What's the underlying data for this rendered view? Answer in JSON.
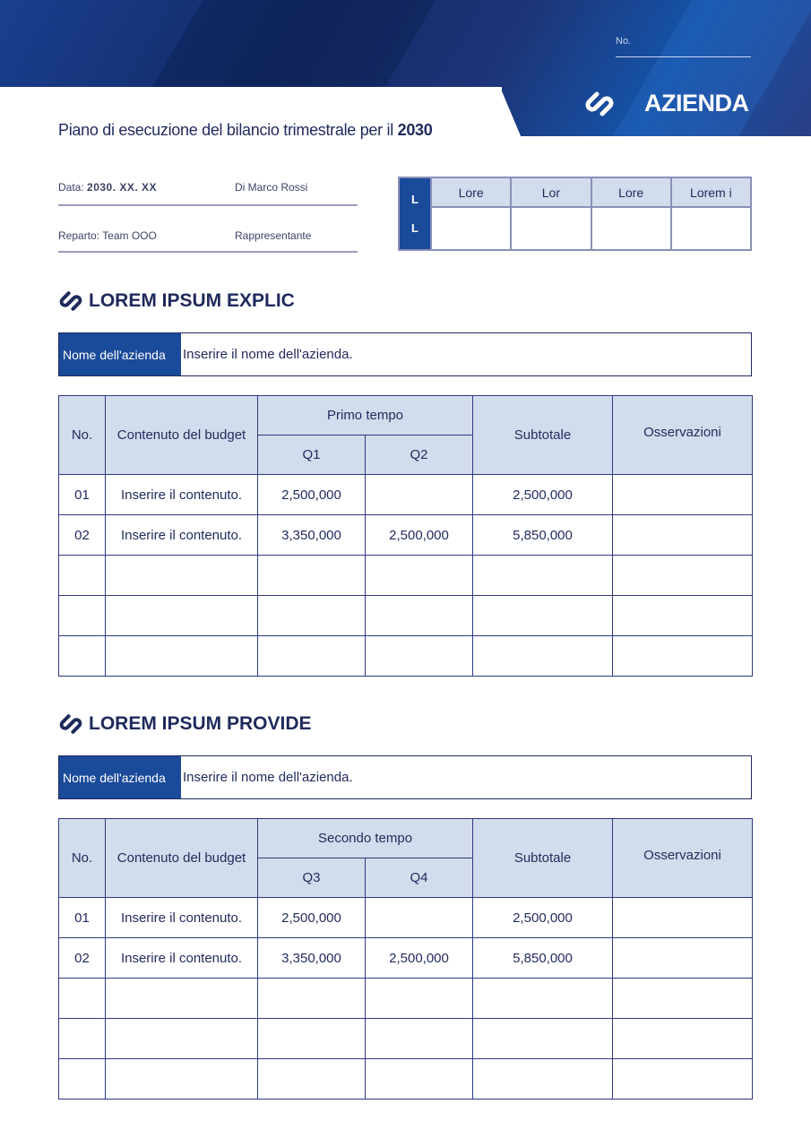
{
  "header": {
    "no_label": "No.",
    "brand": "AZIENDA",
    "title_prefix": "Piano di esecuzione del bilancio trimestrale per il ",
    "title_year": "2030"
  },
  "info": {
    "date_label": "Data: ",
    "date_value": "2030. XX. XX",
    "author": "Di Marco Rossi",
    "department": "Reparto: Team OOO",
    "representative": "Rappresentante"
  },
  "approval": {
    "side": [
      "L",
      "L"
    ],
    "columns": [
      "Lore",
      "Lor",
      "Lore",
      "Lorem i"
    ]
  },
  "colors": {
    "navy": "#1f2a5c",
    "accent": "#1a4a9a",
    "header_bg": "#d3dcec"
  },
  "sections": [
    {
      "title": "LOREM IPSUM EXPLIC",
      "name_label": "Nome dell'azienda",
      "name_value": "Inserire il nome dell'azienda.",
      "table": {
        "headers": {
          "no": "No.",
          "content": "Contenuto del budget",
          "period": "Primo tempo",
          "q_a": "Q1",
          "q_b": "Q2",
          "subtotal": "Subtotale",
          "notes": "Osservazioni"
        },
        "rows": [
          [
            "01",
            "Inserire il contenuto.",
            "2,500,000",
            "",
            "2,500,000",
            ""
          ],
          [
            "02",
            "Inserire il contenuto.",
            "3,350,000",
            "2,500,000",
            "5,850,000",
            ""
          ],
          [
            "",
            "",
            "",
            "",
            "",
            ""
          ],
          [
            "",
            "",
            "",
            "",
            "",
            ""
          ],
          [
            "",
            "",
            "",
            "",
            "",
            ""
          ]
        ]
      }
    },
    {
      "title": "LOREM IPSUM PROVIDE",
      "name_label": "Nome dell'azienda",
      "name_value": "Inserire il nome dell'azienda.",
      "table": {
        "headers": {
          "no": "No.",
          "content": "Contenuto del budget",
          "period": "Secondo tempo",
          "q_a": "Q3",
          "q_b": "Q4",
          "subtotal": "Subtotale",
          "notes": "Osservazioni"
        },
        "rows": [
          [
            "01",
            "Inserire il contenuto.",
            "2,500,000",
            "",
            "2,500,000",
            ""
          ],
          [
            "02",
            "Inserire il contenuto.",
            "3,350,000",
            "2,500,000",
            "5,850,000",
            ""
          ],
          [
            "",
            "",
            "",
            "",
            "",
            ""
          ],
          [
            "",
            "",
            "",
            "",
            "",
            ""
          ],
          [
            "",
            "",
            "",
            "",
            "",
            ""
          ]
        ]
      }
    }
  ]
}
